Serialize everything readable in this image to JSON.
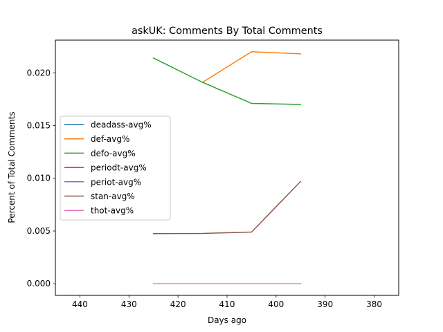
{
  "chart_data": {
    "type": "line",
    "title": "askUK: Comments By Total Comments",
    "xlabel": "Days ago",
    "ylabel": "Percent of Total Comments",
    "xlim": [
      445,
      375
    ],
    "ylim": [
      -0.0011,
      0.0231
    ],
    "x_ticks": [
      440,
      430,
      420,
      410,
      400,
      390,
      380
    ],
    "y_ticks": [
      0.0,
      0.005,
      0.01,
      0.015,
      0.02
    ],
    "y_tick_labels": [
      "0.000",
      "0.005",
      "0.010",
      "0.015",
      "0.020"
    ],
    "x_tick_labels": [
      "440",
      "430",
      "420",
      "410",
      "400",
      "390",
      "380"
    ],
    "grid": false,
    "legend_position": "center-left",
    "x": [
      425,
      415,
      405,
      395
    ],
    "series": [
      {
        "name": "deadass-avg%",
        "color": "#1f77b4",
        "values": [
          0.0,
          0.0,
          0.0,
          0.0
        ]
      },
      {
        "name": "def-avg%",
        "color": "#ff7f0e",
        "values": [
          null,
          0.0191,
          0.022,
          0.0218
        ]
      },
      {
        "name": "defo-avg%",
        "color": "#2ca02c",
        "values": [
          0.0214,
          0.0191,
          0.0171,
          0.017
        ]
      },
      {
        "name": "periodt-avg%",
        "color": "#d62728",
        "values": [
          0.0,
          0.0,
          0.0,
          0.0
        ]
      },
      {
        "name": "periot-avg%",
        "color": "#9467bd",
        "values": [
          0.0,
          0.0,
          0.0,
          0.0
        ]
      },
      {
        "name": "stan-avg%",
        "color": "#8c564b",
        "values": [
          0.00475,
          0.00477,
          0.0049,
          0.0097
        ]
      },
      {
        "name": "thot-avg%",
        "color": "#e377c2",
        "values": [
          0.0,
          0.0,
          0.0,
          0.0
        ]
      }
    ]
  }
}
